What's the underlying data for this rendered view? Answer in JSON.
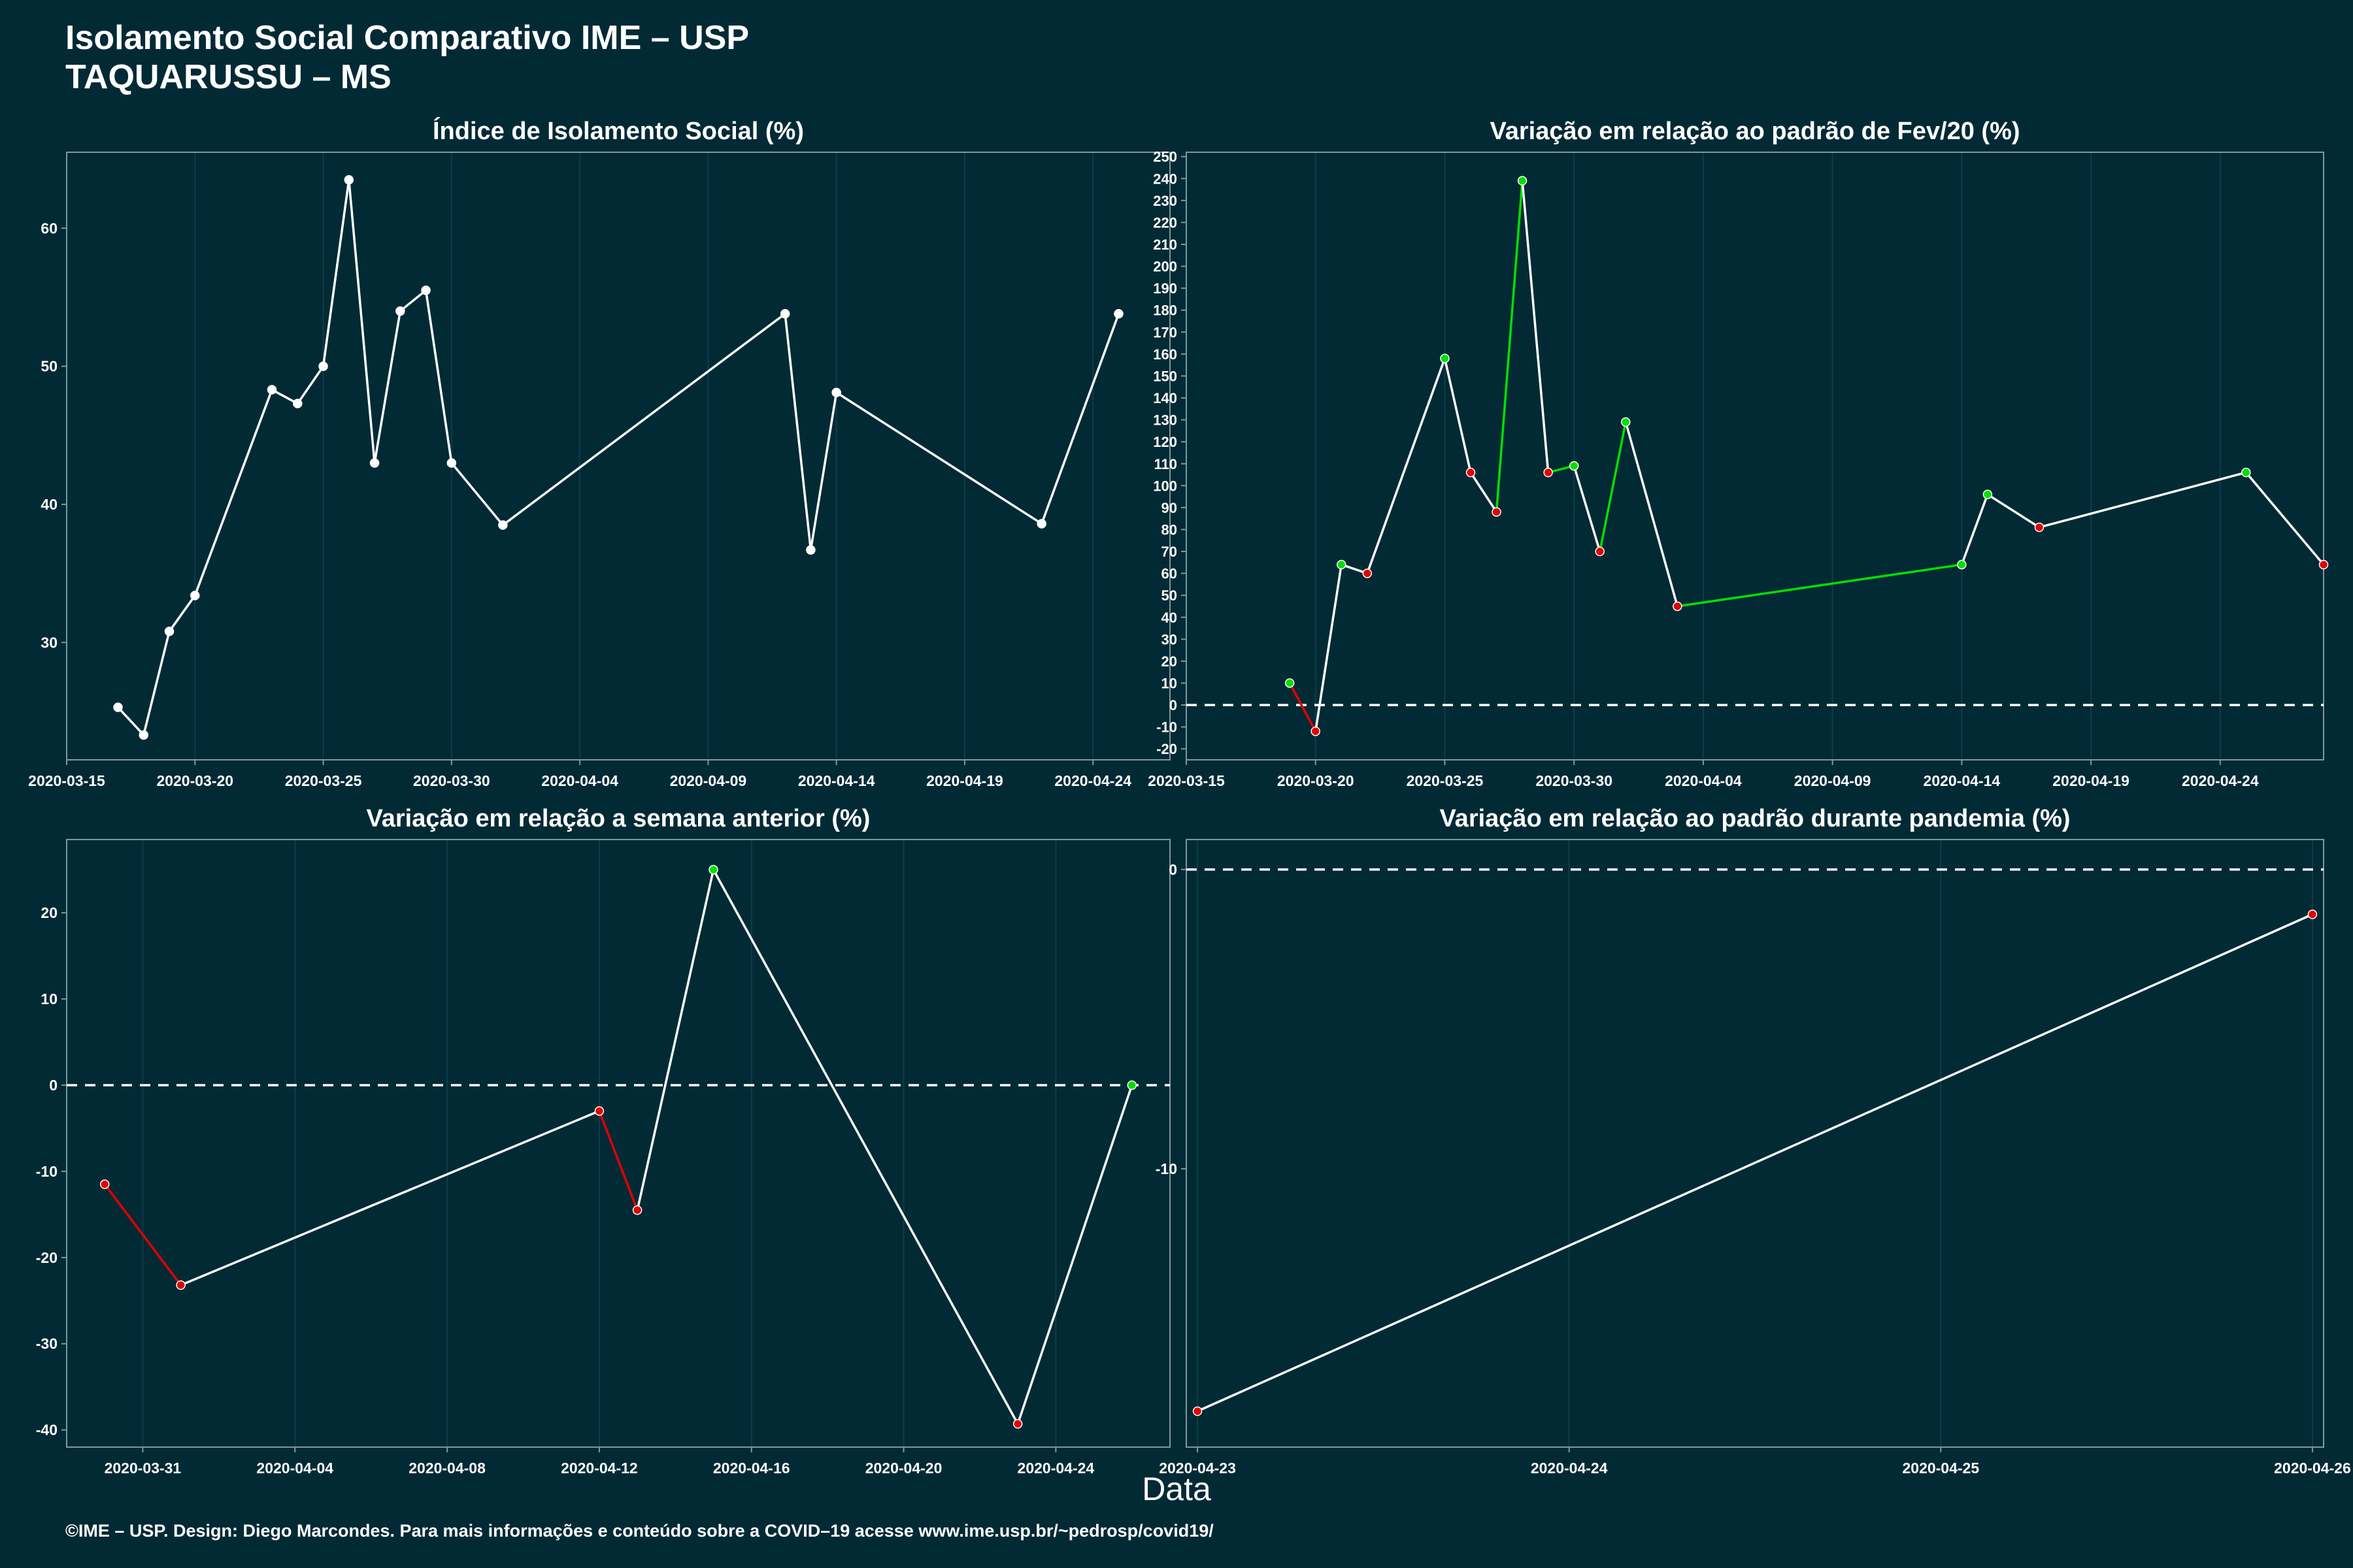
{
  "header": {
    "title": "Isolamento Social Comparativo IME – USP",
    "subtitle": "TAQUARUSSU – MS"
  },
  "xlabel": "Data",
  "footer": "©IME – USP. Design: Diego Marcondes. Para mais informações e conteúdo sobre a COVID–19 acesse www.ime.usp.br/~pedrosp/covid19/",
  "colors": {
    "background": "#022a35",
    "line": "#ffffff",
    "positive": "#00e000",
    "negative": "#e00000",
    "grid": "#0d3d4a"
  },
  "chart_data": [
    {
      "type": "line",
      "title": "Índice de Isolamento Social (%)",
      "xlim": [
        "2020-03-15",
        "2020-04-27"
      ],
      "ylim": [
        21.5,
        65.5
      ],
      "xticks": [
        "2020-03-15",
        "2020-03-20",
        "2020-03-25",
        "2020-03-30",
        "2020-04-04",
        "2020-04-09",
        "2020-04-14",
        "2020-04-19",
        "2020-04-24"
      ],
      "yticks": [
        30,
        40,
        50,
        60
      ],
      "point_color_mode": "white",
      "x": [
        "2020-03-17",
        "2020-03-18",
        "2020-03-19",
        "2020-03-20",
        "2020-03-23",
        "2020-03-24",
        "2020-03-25",
        "2020-03-26",
        "2020-03-27",
        "2020-03-28",
        "2020-03-29",
        "2020-03-30",
        "2020-04-01",
        "2020-04-12",
        "2020-04-13",
        "2020-04-14",
        "2020-04-22",
        "2020-04-25"
      ],
      "y": [
        25.3,
        23.3,
        30.8,
        33.4,
        48.3,
        47.3,
        50.0,
        63.5,
        43.0,
        54.0,
        55.5,
        43.0,
        38.5,
        53.8,
        36.7,
        48.1,
        38.6,
        53.8
      ]
    },
    {
      "type": "line",
      "title": "Variação em relação ao padrão de Fev/20 (%)",
      "xlim": [
        "2020-03-15",
        "2020-04-28"
      ],
      "ylim": [
        -25,
        252
      ],
      "xticks": [
        "2020-03-15",
        "2020-03-20",
        "2020-03-25",
        "2020-03-30",
        "2020-04-04",
        "2020-04-09",
        "2020-04-14",
        "2020-04-19",
        "2020-04-24"
      ],
      "yticks": [
        -20,
        -10,
        0,
        10,
        20,
        30,
        40,
        50,
        60,
        70,
        80,
        90,
        100,
        110,
        120,
        130,
        140,
        150,
        160,
        170,
        180,
        190,
        200,
        210,
        220,
        230,
        240,
        250
      ],
      "zero_line": true,
      "point_color_mode": "change",
      "x": [
        "2020-03-19",
        "2020-03-20",
        "2020-03-21",
        "2020-03-22",
        "2020-03-25",
        "2020-03-26",
        "2020-03-27",
        "2020-03-28",
        "2020-03-29",
        "2020-03-30",
        "2020-03-31",
        "2020-04-01",
        "2020-04-03",
        "2020-04-14",
        "2020-04-15",
        "2020-04-17",
        "2020-04-25",
        "2020-04-28"
      ],
      "y": [
        10,
        -12,
        64,
        60,
        158,
        106,
        88,
        239,
        106,
        109,
        70,
        129,
        45,
        64,
        96,
        81,
        106,
        64
      ]
    },
    {
      "type": "line",
      "title": "Variação em relação a semana anterior (%)",
      "xlim": [
        "2020-03-29",
        "2020-04-27"
      ],
      "ylim": [
        -42,
        28.5
      ],
      "xticks": [
        "2020-03-31",
        "2020-04-04",
        "2020-04-08",
        "2020-04-12",
        "2020-04-16",
        "2020-04-20",
        "2020-04-24"
      ],
      "yticks": [
        -40,
        -30,
        -20,
        -10,
        0,
        10,
        20
      ],
      "zero_line": true,
      "point_color_mode": "sign",
      "x": [
        "2020-03-30",
        "2020-04-01",
        "2020-04-12",
        "2020-04-13",
        "2020-04-15",
        "2020-04-23",
        "2020-04-26"
      ],
      "y": [
        -11.5,
        -23.2,
        -3.0,
        -14.5,
        25.0,
        -39.3,
        0.0
      ]
    },
    {
      "type": "line",
      "title": "Variação em relação ao padrão durante pandemia (%)",
      "xlim": [
        "2020-04-22.97",
        "2020-04-26.03"
      ],
      "ylim": [
        -19.3,
        1.0
      ],
      "xticks": [
        "2020-04-23",
        "2020-04-24",
        "2020-04-25",
        "2020-04-26"
      ],
      "yticks": [
        -10,
        0
      ],
      "zero_line": true,
      "point_color_mode": "sign",
      "x": [
        "2020-04-23",
        "2020-04-26"
      ],
      "y": [
        -18.1,
        -1.5
      ]
    }
  ]
}
